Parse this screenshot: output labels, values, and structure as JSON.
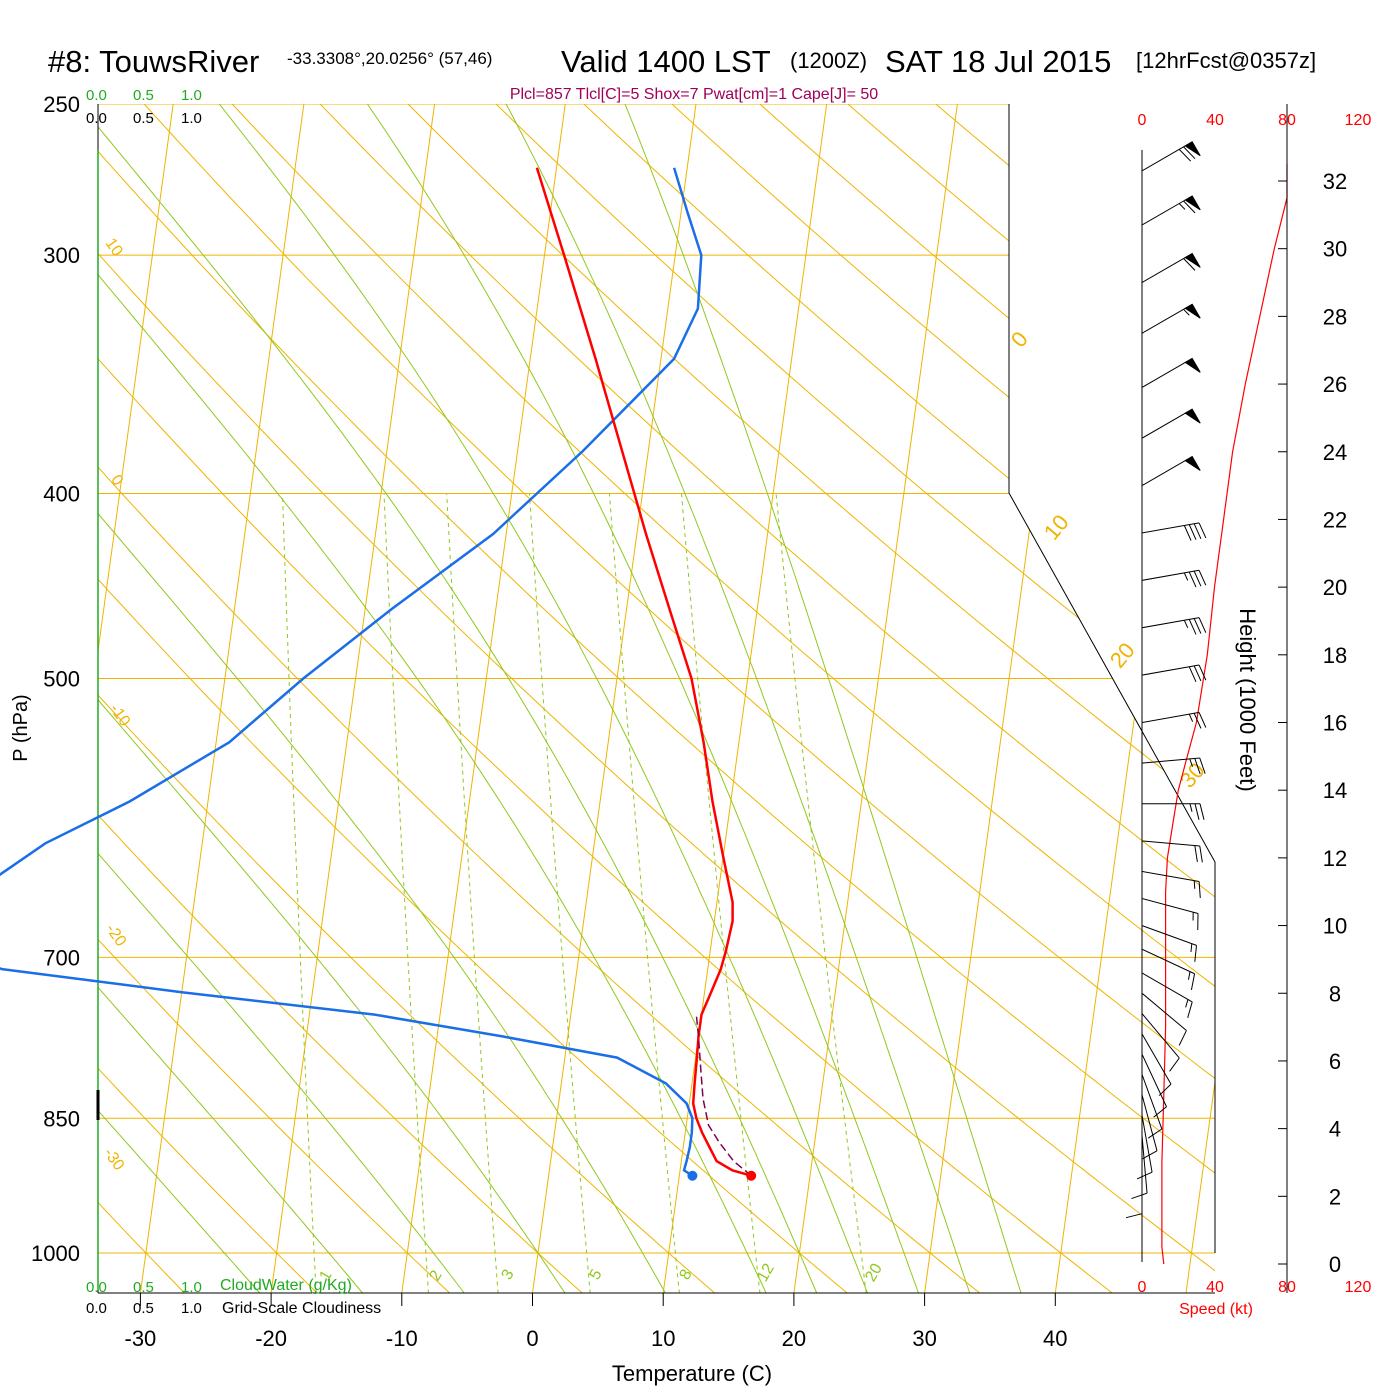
{
  "header": {
    "station": "#8: TouwsRiver",
    "coords": "-33.3308°,20.0256° (57,46)",
    "valid": "Valid 1400 LST",
    "zulu": "(1200Z)",
    "date": "SAT 18 Jul 2015",
    "forecast": "[12hrFcst@0357z]",
    "indices": "Plcl=857 Tlcl[C]=5 Shox=7 Pwat[cm]=1 Cape[J]= 50"
  },
  "colors": {
    "temperature": "#ff0000",
    "dewpoint": "#1a6ee8",
    "parcel": "#800050",
    "isotherm": "#f0b400",
    "dry_adiabat": "#f0b400",
    "moist_adiabat": "#90c820",
    "mixing_ratio": "#90c820",
    "cloud": "#22aa22",
    "speed": "#ff0000",
    "indices_text": "#a0005a"
  },
  "chart_data": {
    "type": "line",
    "diagram": "skew-T log-p",
    "xlabel": "Temperature (C)",
    "ylabel": "P (hPa)",
    "right_axis_label": "Height (1000 Feet)",
    "x_ticks": [
      "-30",
      "-20",
      "-10",
      "0",
      "10",
      "20",
      "30",
      "40"
    ],
    "y_ticks": [
      "250",
      "300",
      "400",
      "500",
      "700",
      "850",
      "1000"
    ],
    "height_ticks": [
      "0",
      "2",
      "4",
      "6",
      "8",
      "10",
      "12",
      "14",
      "16",
      "18",
      "20",
      "22",
      "24",
      "26",
      "28",
      "30",
      "32"
    ],
    "cloud_scale_top_green": [
      "0.0",
      "0.5",
      "1.0"
    ],
    "cloud_scale_top_black": [
      "0.0",
      "0.5",
      "1.0"
    ],
    "cloud_scale_bottom_green": [
      "0.0",
      "0.5",
      "1.0"
    ],
    "cloud_scale_bottom_black": [
      "0.0",
      "0.5",
      "1.0"
    ],
    "cloudwater_label": "CloudWater (g/Kg)",
    "cloudiness_label": "Grid-Scale Cloudiness",
    "speed_ticks": [
      "0",
      "40",
      "80",
      "120"
    ],
    "speed_label": "Speed (kt)",
    "dry_adiabat_labels": [
      "10",
      "0",
      "-10",
      "-20",
      "-30"
    ],
    "moist_adiabat_labels": [
      "0",
      "10",
      "20",
      "30"
    ],
    "mixing_ratio_labels": [
      "1",
      "2",
      "3",
      "5",
      "8",
      "12",
      "20"
    ],
    "temperature_profile": [
      [
        911,
        15.5
      ],
      [
        905,
        14.0
      ],
      [
        895,
        12.7
      ],
      [
        880,
        12.0
      ],
      [
        865,
        11.3
      ],
      [
        850,
        10.7
      ],
      [
        835,
        10.3
      ],
      [
        815,
        10.2
      ],
      [
        790,
        10.1
      ],
      [
        770,
        10.0
      ],
      [
        750,
        10.0
      ],
      [
        730,
        10.5
      ],
      [
        710,
        11.0
      ],
      [
        695,
        11.2
      ],
      [
        670,
        11.4
      ],
      [
        655,
        11.2
      ],
      [
        620,
        10.0
      ],
      [
        580,
        8.6
      ],
      [
        540,
        7.3
      ],
      [
        500,
        5.7
      ],
      [
        460,
        3.3
      ],
      [
        420,
        0.7
      ],
      [
        380,
        -2.0
      ],
      [
        340,
        -5.0
      ],
      [
        300,
        -8.5
      ],
      [
        270,
        -11.5
      ]
    ],
    "dewpoint_profile": [
      [
        911,
        11.0
      ],
      [
        905,
        10.3
      ],
      [
        895,
        10.4
      ],
      [
        880,
        10.5
      ],
      [
        865,
        10.5
      ],
      [
        850,
        10.4
      ],
      [
        835,
        9.8
      ],
      [
        815,
        8.0
      ],
      [
        790,
        4.0
      ],
      [
        770,
        -5.0
      ],
      [
        750,
        -15.0
      ],
      [
        730,
        -30.0
      ],
      [
        710,
        -44.0
      ],
      [
        700,
        -47.0
      ],
      [
        640,
        -46.0
      ],
      [
        610,
        -42.0
      ],
      [
        580,
        -36.0
      ],
      [
        540,
        -29.0
      ],
      [
        500,
        -24.0
      ],
      [
        460,
        -18.0
      ],
      [
        420,
        -11.0
      ],
      [
        380,
        -5.0
      ],
      [
        340,
        1.0
      ],
      [
        320,
        2.3
      ],
      [
        300,
        2.0
      ],
      [
        285,
        0.5
      ],
      [
        270,
        -1.0
      ]
    ],
    "parcel_profile": [
      [
        911,
        15.5
      ],
      [
        895,
        14.0
      ],
      [
        875,
        12.7
      ],
      [
        857,
        11.7
      ],
      [
        830,
        11.0
      ],
      [
        800,
        10.5
      ],
      [
        770,
        10.0
      ],
      [
        750,
        9.6
      ]
    ],
    "surface_temperature": [
      911,
      15.5
    ],
    "surface_dewpoint": [
      911,
      11.0
    ],
    "speed_profile": [
      [
        0.0,
        12
      ],
      [
        0.5,
        11
      ],
      [
        1.5,
        11
      ],
      [
        3.0,
        11
      ],
      [
        5.0,
        12
      ],
      [
        7.0,
        13
      ],
      [
        9.0,
        13
      ],
      [
        11.0,
        13
      ],
      [
        12.0,
        14
      ],
      [
        13.0,
        17
      ],
      [
        14.0,
        20
      ],
      [
        15.0,
        25
      ],
      [
        16.0,
        30
      ],
      [
        18.0,
        36
      ],
      [
        20.0,
        40
      ],
      [
        22.0,
        45
      ],
      [
        24.0,
        50
      ],
      [
        26.0,
        57
      ],
      [
        28.0,
        65
      ],
      [
        30.0,
        73
      ],
      [
        31.5,
        80
      ],
      [
        32.5,
        80
      ]
    ],
    "wind_barbs": [
      {
        "h": 32.3,
        "dir": 240,
        "kt": 70
      },
      {
        "h": 30.7,
        "dir": 240,
        "kt": 65
      },
      {
        "h": 29.0,
        "dir": 240,
        "kt": 60
      },
      {
        "h": 27.5,
        "dir": 240,
        "kt": 55
      },
      {
        "h": 25.9,
        "dir": 240,
        "kt": 50
      },
      {
        "h": 24.4,
        "dir": 240,
        "kt": 50
      },
      {
        "h": 23.0,
        "dir": 240,
        "kt": 50
      },
      {
        "h": 21.6,
        "dir": 260,
        "kt": 40
      },
      {
        "h": 20.2,
        "dir": 260,
        "kt": 35
      },
      {
        "h": 18.8,
        "dir": 260,
        "kt": 35
      },
      {
        "h": 17.4,
        "dir": 260,
        "kt": 30
      },
      {
        "h": 16.0,
        "dir": 260,
        "kt": 25
      },
      {
        "h": 14.8,
        "dir": 265,
        "kt": 25
      },
      {
        "h": 13.6,
        "dir": 270,
        "kt": 25
      },
      {
        "h": 12.5,
        "dir": 275,
        "kt": 20
      },
      {
        "h": 11.6,
        "dir": 280,
        "kt": 15
      },
      {
        "h": 10.8,
        "dir": 285,
        "kt": 15
      },
      {
        "h": 10.0,
        "dir": 290,
        "kt": 15
      },
      {
        "h": 9.3,
        "dir": 295,
        "kt": 15
      },
      {
        "h": 8.6,
        "dir": 300,
        "kt": 15
      },
      {
        "h": 8.0,
        "dir": 310,
        "kt": 10
      },
      {
        "h": 7.4,
        "dir": 320,
        "kt": 10
      },
      {
        "h": 6.8,
        "dir": 330,
        "kt": 10
      },
      {
        "h": 6.2,
        "dir": 335,
        "kt": 10
      },
      {
        "h": 5.6,
        "dir": 340,
        "kt": 10
      },
      {
        "h": 5.0,
        "dir": 345,
        "kt": 10
      },
      {
        "h": 4.4,
        "dir": 350,
        "kt": 10
      },
      {
        "h": 3.8,
        "dir": 355,
        "kt": 10
      },
      {
        "h": 3.2,
        "dir": 0,
        "kt": 10
      }
    ]
  }
}
